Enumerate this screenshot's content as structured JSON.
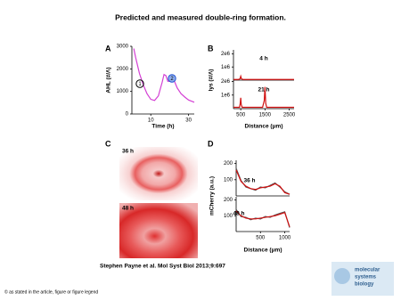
{
  "title": "Predicted and measured double-ring formation.",
  "citation": "Stephen Payne et al. Mol Syst Biol 2013;9:697",
  "footer": "© as stated in the article, figure or figure legend",
  "logo": [
    "molecular",
    "systems",
    "biology"
  ],
  "panel_c": {
    "panel": "C",
    "images": [
      {
        "label": "36 h"
      },
      {
        "label": "48 h"
      }
    ]
  },
  "chart_data": [
    {
      "type": "line",
      "panel": "A",
      "xlabel": "Time (h)",
      "ylabel": "AHL (#/Λ)",
      "annotations": [
        "1",
        "2"
      ],
      "x": [
        1,
        2,
        4,
        6,
        8,
        10,
        12,
        14,
        16,
        17,
        18,
        19,
        20,
        21,
        22,
        24,
        26,
        28,
        30,
        33
      ],
      "series": [
        {
          "color": "#d43fd4",
          "values": [
            2900,
            2500,
            1800,
            1300,
            900,
            650,
            600,
            800,
            1400,
            1750,
            1700,
            1450,
            1450,
            1600,
            1550,
            1150,
            900,
            750,
            620,
            520
          ]
        }
      ],
      "xlim": [
        0,
        33
      ],
      "xticks": [
        10,
        30
      ],
      "ylim": [
        0,
        3000
      ],
      "yticks": [
        0,
        1000,
        2000,
        3000
      ]
    },
    {
      "type": "line",
      "panel": "B",
      "label": "4 h",
      "ylabel": "lys (#/Λ)",
      "x": [
        200,
        400,
        470,
        500,
        530,
        600,
        1000,
        1500,
        2000,
        2700
      ],
      "series": [
        {
          "color": "#d01010",
          "values": [
            50000,
            50000,
            100000,
            300000,
            100000,
            50000,
            50000,
            50000,
            50000,
            50000
          ]
        }
      ],
      "xlim": [
        200,
        2700
      ],
      "ylim": [
        0,
        2300000
      ],
      "yticks": [
        {
          "value": 1000000,
          "label": "1e6"
        },
        {
          "value": 2000000,
          "label": "2e6"
        }
      ]
    },
    {
      "type": "line",
      "label": "21 h",
      "xlabel": "Distance (μm)",
      "x": [
        200,
        450,
        480,
        500,
        520,
        560,
        1000,
        1400,
        1470,
        1500,
        1530,
        1570,
        2000,
        2700
      ],
      "series": [
        {
          "color": "#d01010",
          "values": [
            100000,
            100000,
            400000,
            800000,
            300000,
            100000,
            100000,
            100000,
            600000,
            1600000,
            400000,
            100000,
            100000,
            100000
          ]
        }
      ],
      "xlim": [
        200,
        2700
      ],
      "xticks": [
        500,
        1500,
        2500
      ],
      "ylim": [
        0,
        2100000
      ],
      "yticks": [
        {
          "value": 1000000,
          "label": "1e6"
        },
        {
          "value": 2000000,
          "label": "2e6"
        }
      ]
    },
    {
      "type": "line",
      "panel": "D",
      "label": "36 h",
      "ylabel": "mCherry (a.u.)",
      "x": [
        0,
        100,
        200,
        300,
        400,
        500,
        600,
        700,
        800,
        900,
        1000,
        1100
      ],
      "series": [
        {
          "color": "#555555",
          "values": [
            170,
            95,
            55,
            45,
            35,
            55,
            50,
            65,
            80,
            55,
            25,
            10
          ]
        },
        {
          "color": "#d01010",
          "values": [
            160,
            90,
            60,
            45,
            40,
            50,
            55,
            60,
            75,
            60,
            20,
            10
          ]
        }
      ],
      "xlim": [
        0,
        1100
      ],
      "ylim": [
        0,
        220
      ],
      "yticks": [
        100,
        200
      ]
    },
    {
      "type": "line",
      "label": "48 h",
      "xlabel": "Distance (μm)",
      "x": [
        0,
        100,
        200,
        300,
        400,
        500,
        600,
        700,
        800,
        900,
        1000,
        1100
      ],
      "series": [
        {
          "color": "#555555",
          "values": [
            140,
            95,
            90,
            75,
            85,
            80,
            95,
            90,
            105,
            115,
            125,
            25
          ]
        },
        {
          "color": "#d01010",
          "values": [
            130,
            100,
            85,
            80,
            80,
            85,
            90,
            95,
            100,
            110,
            120,
            30
          ]
        }
      ],
      "xlim": [
        0,
        1100
      ],
      "xticks": [
        500,
        1000
      ],
      "ylim": [
        0,
        220
      ],
      "yticks": [
        100,
        200
      ]
    }
  ]
}
